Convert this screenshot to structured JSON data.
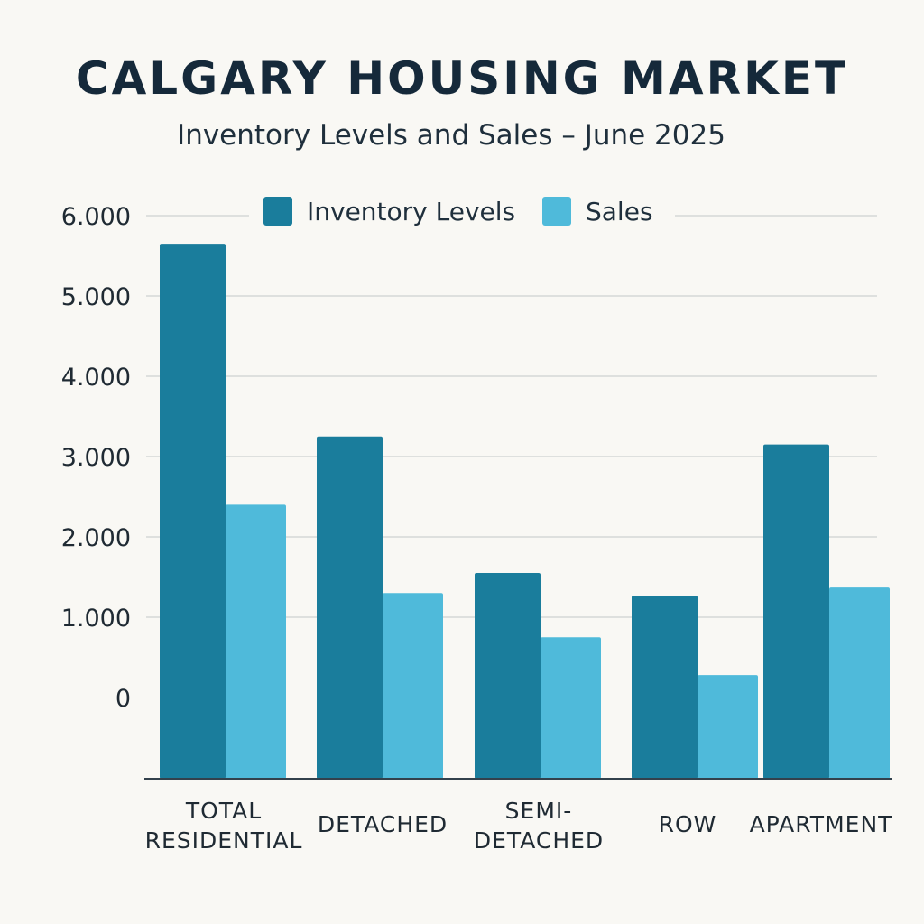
{
  "chart_data": {
    "type": "bar",
    "title": "CALGARY HOUSING MARKET",
    "subtitle": "Inventory Levels and Sales – June 2025",
    "categories": [
      [
        "TOTAL",
        "RESIDENTIAL"
      ],
      [
        "DETACHED"
      ],
      [
        "SEMI-",
        "DETACHED"
      ],
      [
        "ROW"
      ],
      [
        "APARTMENT"
      ]
    ],
    "series": [
      {
        "name": "Inventory Levels",
        "color": "#1a7d9c",
        "values": [
          5650,
          3250,
          1550,
          1270,
          3150
        ]
      },
      {
        "name": "Sales",
        "color": "#4fbada",
        "values": [
          2400,
          1300,
          750,
          280,
          1370
        ]
      }
    ],
    "y_ticks": [
      "6.000",
      "5.000",
      "4.000",
      "3.000",
      "2.000",
      "1.000",
      "0"
    ],
    "ylim": [
      0,
      6000
    ],
    "grid": true,
    "legend_position": "top-center"
  }
}
